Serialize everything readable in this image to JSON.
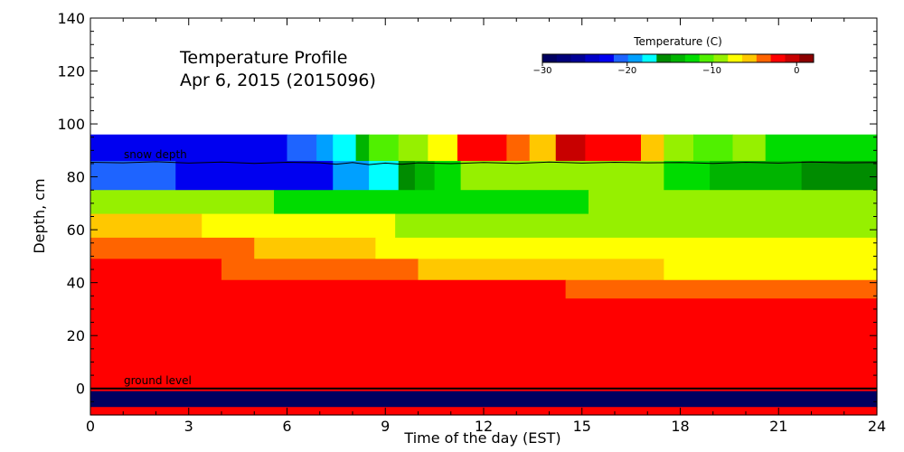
{
  "chart_data": {
    "type": "heatmap",
    "title_line1": "Temperature Profile",
    "title_line2": "Apr  6, 2015 (2015096)",
    "xlabel": "Time of the day (EST)",
    "ylabel": "Depth, cm",
    "xlim": [
      0,
      24
    ],
    "ylim": [
      -10,
      140
    ],
    "xticks": [
      0,
      3,
      6,
      9,
      12,
      15,
      18,
      21,
      24
    ],
    "yticks": [
      0,
      20,
      40,
      60,
      80,
      100,
      120,
      140
    ],
    "colorbar": {
      "title": "Temperature (C)",
      "range": [
        -30,
        2
      ],
      "ticks": [
        -30,
        -20,
        -10,
        0
      ],
      "tick_labels": [
        "−30",
        "−20",
        "−10",
        "0"
      ],
      "colors": [
        "#000060",
        "#00007a",
        "#000096",
        "#0000c8",
        "#0000f0",
        "#1e64ff",
        "#00a0ff",
        "#00ffff",
        "#008c00",
        "#00b400",
        "#00dc00",
        "#50f000",
        "#96f000",
        "#ffff00",
        "#ffc800",
        "#ff6400",
        "#ff0000",
        "#c80000",
        "#8c0000"
      ]
    },
    "annotations": {
      "snow_depth_label": "snow depth",
      "ground_label": "ground level",
      "ground_level_cm": 0
    },
    "rows": [
      {
        "y": [
          86,
          96
        ],
        "segments": [
          {
            "x": [
              0,
              6
            ],
            "c": "#0000f0"
          },
          {
            "x": [
              6,
              6.9
            ],
            "c": "#1e64ff"
          },
          {
            "x": [
              6.9,
              7.4
            ],
            "c": "#00a0ff"
          },
          {
            "x": [
              7.4,
              8.1
            ],
            "c": "#00ffff"
          },
          {
            "x": [
              8.1,
              8.5
            ],
            "c": "#00b400"
          },
          {
            "x": [
              8.5,
              9.4
            ],
            "c": "#50f000"
          },
          {
            "x": [
              9.4,
              10.3
            ],
            "c": "#96f000"
          },
          {
            "x": [
              10.3,
              11.2
            ],
            "c": "#ffff00"
          },
          {
            "x": [
              11.2,
              12.7
            ],
            "c": "#ff0000"
          },
          {
            "x": [
              12.7,
              13.4
            ],
            "c": "#ff6400"
          },
          {
            "x": [
              13.4,
              14.2
            ],
            "c": "#ffc800"
          },
          {
            "x": [
              14.2,
              15.1
            ],
            "c": "#c80000"
          },
          {
            "x": [
              15.1,
              16.8
            ],
            "c": "#ff0000"
          },
          {
            "x": [
              16.8,
              17.5
            ],
            "c": "#ffc800"
          },
          {
            "x": [
              17.5,
              18.4
            ],
            "c": "#96f000"
          },
          {
            "x": [
              18.4,
              19.6
            ],
            "c": "#50f000"
          },
          {
            "x": [
              19.6,
              20.6
            ],
            "c": "#96f000"
          },
          {
            "x": [
              20.6,
              24
            ],
            "c": "#00dc00"
          }
        ]
      },
      {
        "y": [
          75,
          86
        ],
        "segments": [
          {
            "x": [
              0,
              2.6
            ],
            "c": "#1e64ff"
          },
          {
            "x": [
              2.6,
              7.4
            ],
            "c": "#0000f0"
          },
          {
            "x": [
              7.4,
              8.5
            ],
            "c": "#00a0ff"
          },
          {
            "x": [
              8.5,
              9.4
            ],
            "c": "#00ffff"
          },
          {
            "x": [
              9.4,
              9.9
            ],
            "c": "#008c00"
          },
          {
            "x": [
              9.9,
              10.5
            ],
            "c": "#00b400"
          },
          {
            "x": [
              10.5,
              11.3
            ],
            "c": "#00dc00"
          },
          {
            "x": [
              11.3,
              17.5
            ],
            "c": "#96f000"
          },
          {
            "x": [
              17.5,
              18.9
            ],
            "c": "#00dc00"
          },
          {
            "x": [
              18.9,
              21.7
            ],
            "c": "#00b400"
          },
          {
            "x": [
              21.7,
              24
            ],
            "c": "#008c00"
          }
        ]
      },
      {
        "y": [
          66,
          75
        ],
        "segments": [
          {
            "x": [
              0,
              5.6
            ],
            "c": "#96f000"
          },
          {
            "x": [
              5.6,
              15.2
            ],
            "c": "#00dc00"
          },
          {
            "x": [
              15.2,
              24
            ],
            "c": "#96f000"
          }
        ]
      },
      {
        "y": [
          57,
          66
        ],
        "segments": [
          {
            "x": [
              0,
              3.4
            ],
            "c": "#ffc800"
          },
          {
            "x": [
              3.4,
              9.3
            ],
            "c": "#ffff00"
          },
          {
            "x": [
              9.3,
              24
            ],
            "c": "#96f000"
          }
        ]
      },
      {
        "y": [
          49,
          57
        ],
        "segments": [
          {
            "x": [
              0,
              5
            ],
            "c": "#ff6400"
          },
          {
            "x": [
              5,
              8.7
            ],
            "c": "#ffc800"
          },
          {
            "x": [
              8.7,
              24
            ],
            "c": "#ffff00"
          }
        ]
      },
      {
        "y": [
          41,
          49
        ],
        "segments": [
          {
            "x": [
              0,
              4
            ],
            "c": "#ff0000"
          },
          {
            "x": [
              4,
              10
            ],
            "c": "#ff6400"
          },
          {
            "x": [
              10,
              10.6
            ],
            "c": "#ffc800"
          },
          {
            "x": [
              10.6,
              17.5
            ],
            "c": "#ffc800"
          },
          {
            "x": [
              17.5,
              24
            ],
            "c": "#ffff00"
          }
        ]
      },
      {
        "y": [
          34,
          41
        ],
        "segments": [
          {
            "x": [
              0,
              14.5
            ],
            "c": "#ff0000"
          },
          {
            "x": [
              14.5,
              24
            ],
            "c": "#ff6400"
          }
        ]
      },
      {
        "y": [
          -1,
          34
        ],
        "segments": [
          {
            "x": [
              0,
              24
            ],
            "c": "#ff0000"
          }
        ]
      },
      {
        "y": [
          -7,
          -1
        ],
        "segments": [
          {
            "x": [
              0,
              24
            ],
            "c": "#000060"
          }
        ]
      },
      {
        "y": [
          -10,
          -7
        ],
        "segments": [
          {
            "x": [
              0,
              24
            ],
            "c": "#ff0000"
          }
        ]
      }
    ],
    "snow_depth": {
      "x": [
        0,
        1,
        2,
        3,
        4,
        5,
        6,
        7,
        7.5,
        8,
        8.5,
        9,
        9.5,
        10,
        11,
        12,
        13,
        14,
        15,
        16,
        17,
        18,
        19,
        20,
        21,
        22,
        23,
        24
      ],
      "y": [
        85.5,
        85.3,
        85.7,
        85.2,
        85.6,
        85.1,
        85.5,
        85.3,
        84.8,
        85.4,
        84.6,
        85.2,
        84.7,
        85.3,
        85.0,
        85.4,
        85.1,
        85.6,
        85.2,
        85.5,
        85.3,
        85.4,
        85.1,
        85.5,
        85.2,
        85.6,
        85.3,
        85.4
      ]
    }
  }
}
